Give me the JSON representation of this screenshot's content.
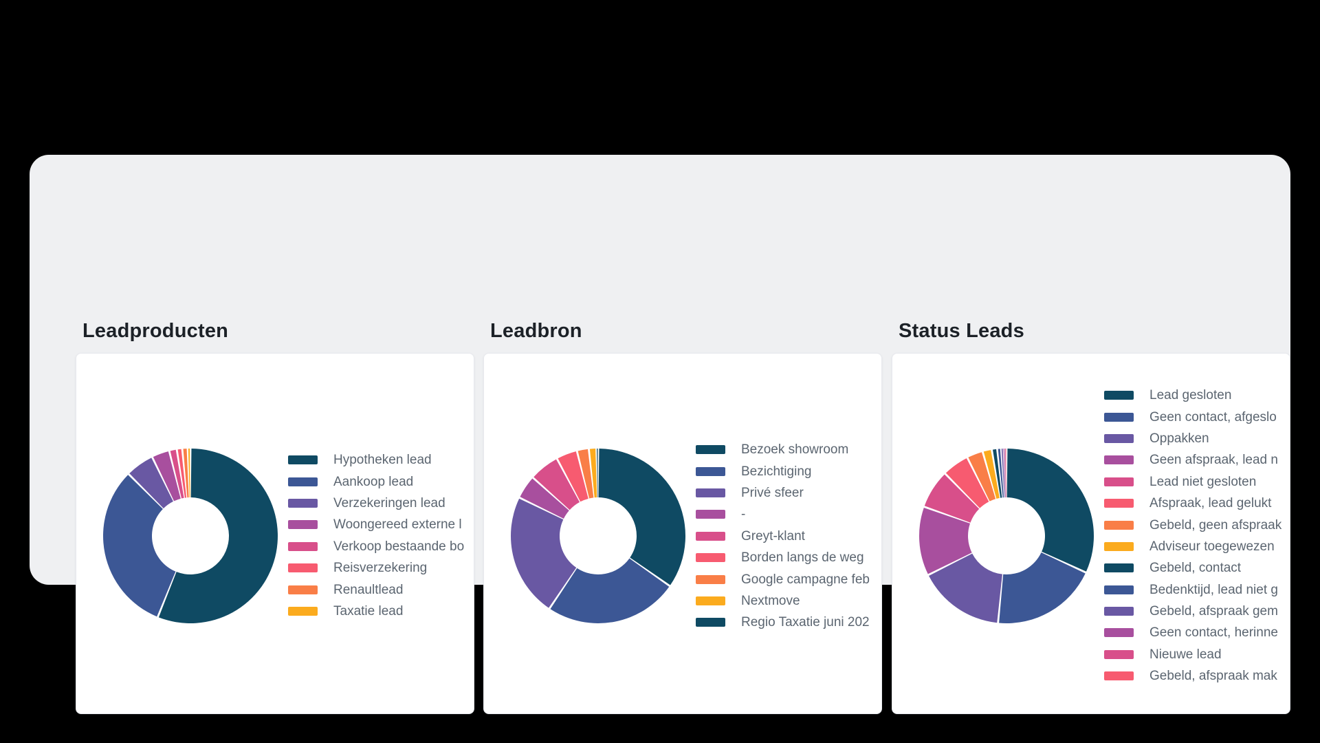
{
  "canvas": {
    "background": "#000000",
    "card_background": "#eff0f2",
    "panel_background": "#ffffff"
  },
  "palette": [
    "#0f4a63",
    "#3c5795",
    "#6958a3",
    "#a84f9e",
    "#d84f8a",
    "#f75b70",
    "#f97e47",
    "#fbab1e"
  ],
  "text_colors": {
    "title": "#1c2127",
    "legend": "#5b6570"
  },
  "chart_data": [
    {
      "type": "pie",
      "variant": "donut",
      "title": "Leadproducten",
      "legend_position": "right",
      "unit": "percent",
      "labels": [
        "Hypotheken lead",
        "Aankoop lead",
        "Verzekeringen lead",
        "Woongereed externe l",
        "Verkoop bestaande bo",
        "Reisverzekering",
        "Renaultlead",
        "Taxatie lead"
      ],
      "values": [
        56.1,
        31.4,
        5.3,
        3.3,
        1.4,
        1.0,
        1.0,
        0.5
      ]
    },
    {
      "type": "pie",
      "variant": "donut",
      "title": "Leadbron",
      "legend_position": "right",
      "unit": "percent",
      "labels": [
        "Bezoek showroom",
        "Bezichtiging",
        "Privé sfeer",
        "-",
        "Greyt-klant",
        "Borden langs de weg",
        "Google campagne feb",
        "Nextmove",
        "Regio Taxatie juni 202"
      ],
      "values": [
        34.7,
        24.7,
        22.8,
        4.4,
        5.6,
        3.9,
        2.2,
        1.4,
        0.3
      ]
    },
    {
      "type": "pie",
      "variant": "donut",
      "title": "Status Leads",
      "legend_position": "right",
      "unit": "percent",
      "labels": [
        "Lead gesloten",
        "Geen contact, afgeslo",
        "Oppakken",
        "Geen afspraak, lead n",
        "Lead niet gesloten",
        "Afspraak, lead gelukt",
        "Gebeld, geen afspraak",
        "Adviseur toegewezen",
        "Gebeld, contact",
        "Bedenktijd, lead niet g",
        "Gebeld, afspraak gem",
        "Geen contact, herinne",
        "Nieuwe lead",
        "Gebeld, afspraak mak"
      ],
      "values": [
        31.9,
        19.7,
        16.1,
        12.8,
        7.2,
        5.0,
        3.0,
        1.7,
        1.0,
        0.7,
        0.4,
        0.3,
        0.2,
        0.1
      ]
    }
  ]
}
